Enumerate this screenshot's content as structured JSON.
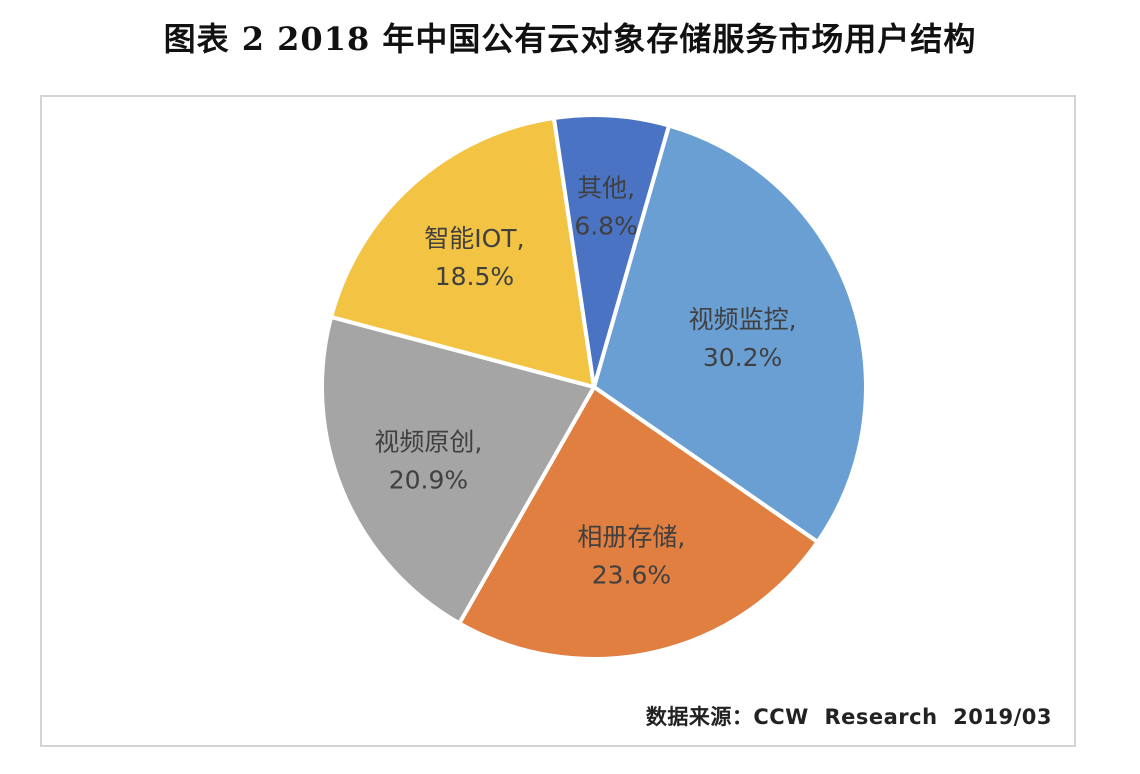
{
  "chart_data": {
    "type": "pie",
    "title": "图表 2 2018 年中国公有云对象存储服务市场用户结构",
    "slices": [
      {
        "label": "视频监控",
        "value": 30.2,
        "display": "30.2%",
        "color": "#6a9fd4"
      },
      {
        "label": "相册存储",
        "value": 23.6,
        "display": "23.6%",
        "color": "#e07f3f"
      },
      {
        "label": "视频原创",
        "value": 20.9,
        "display": "20.9%",
        "color": "#a5a5a5"
      },
      {
        "label": "智能IOT",
        "value": 18.5,
        "display": "18.5%",
        "color": "#f3c343"
      },
      {
        "label": "其他",
        "value": 6.8,
        "display": "6.8%",
        "color": "#4a74c3"
      }
    ],
    "source": "数据来源：CCW  Research  2019/03"
  }
}
